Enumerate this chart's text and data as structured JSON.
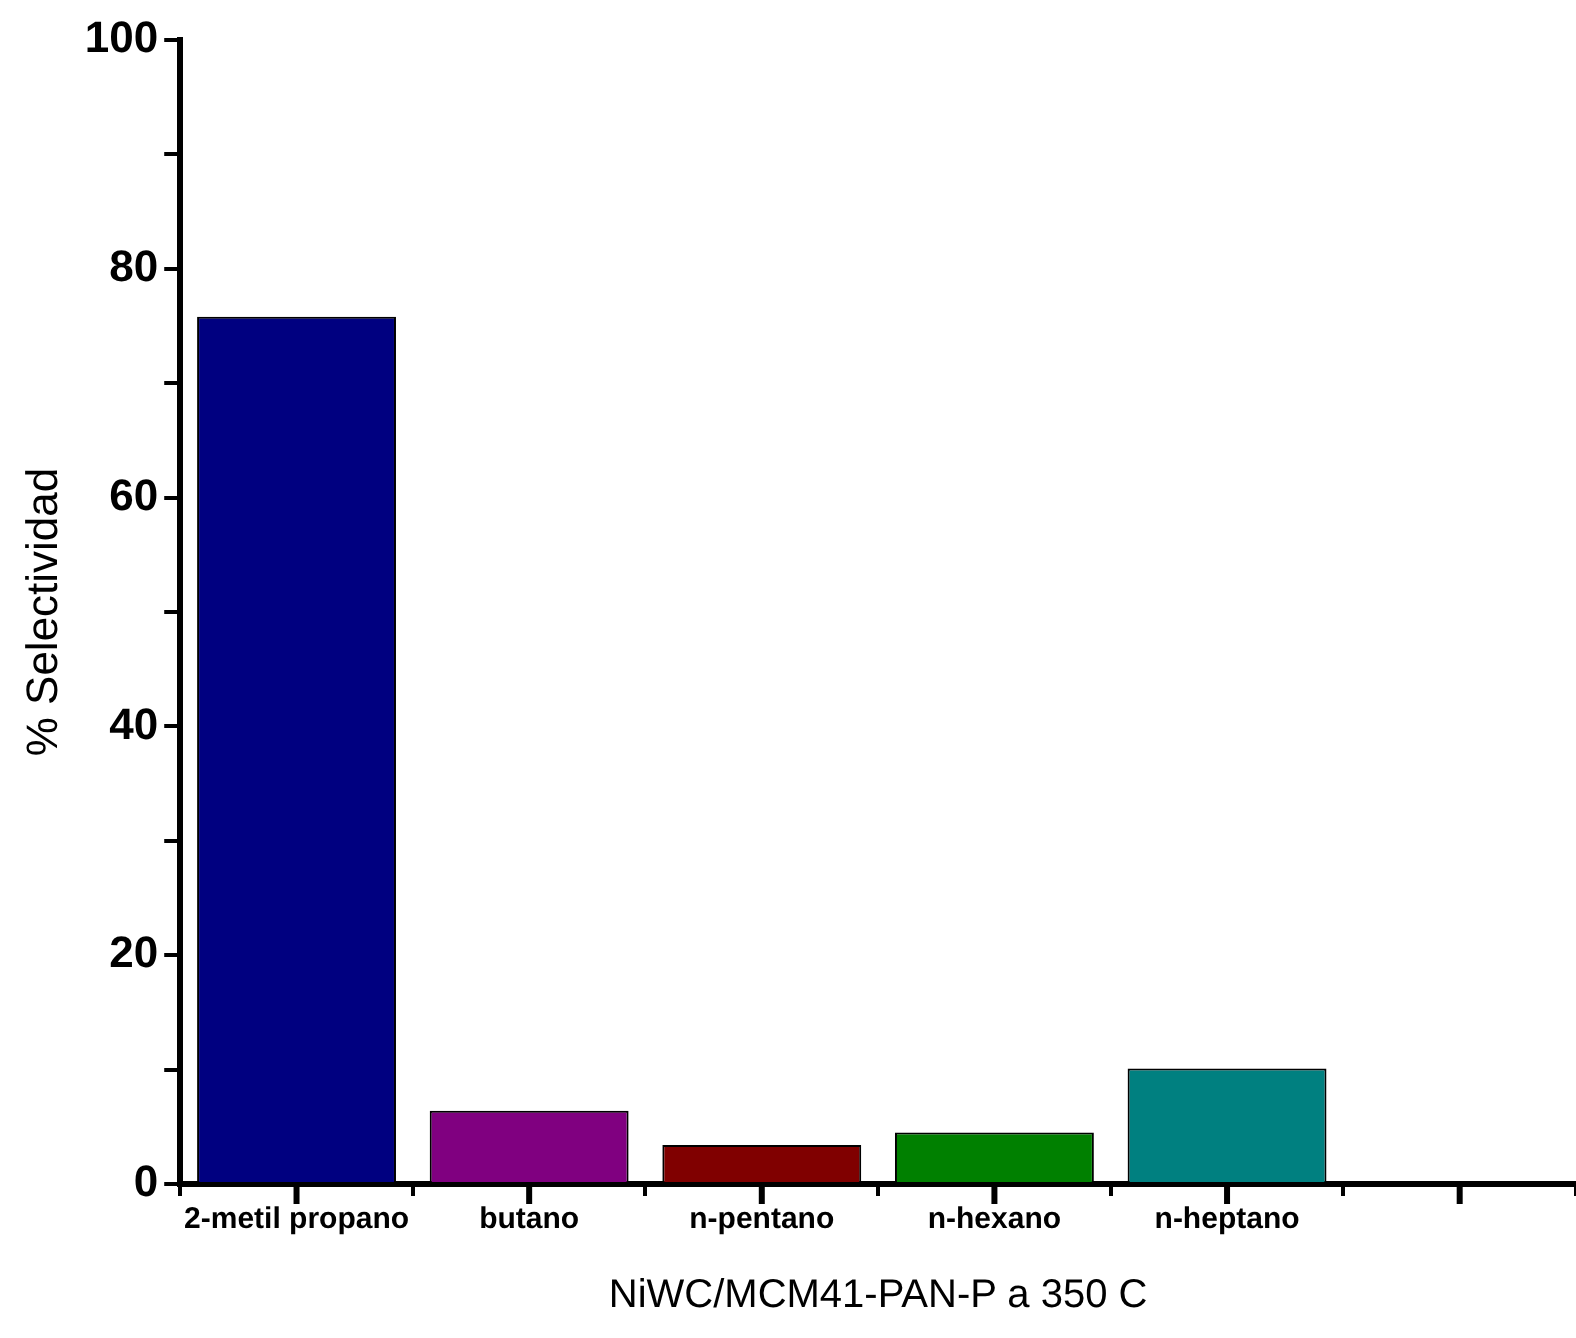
{
  "chart_data": {
    "type": "bar",
    "xlabel": "NiWC/MCM41-PAN-P a 350 C",
    "ylabel": "% Selectividad",
    "categories": [
      "2-metil propano",
      "butano",
      "n-pentano",
      "n-hexano",
      "n-heptano",
      null
    ],
    "values": [
      75.8,
      6.4,
      3.4,
      4.5,
      10.1,
      null
    ],
    "colors": [
      "#000080",
      "#800080",
      "#800000",
      "#008000",
      "#008080",
      null
    ],
    "ylim": [
      0,
      100
    ],
    "yticks": [
      0,
      {
        "value": 10,
        "label": null
      },
      20,
      {
        "value": 30,
        "label": null
      },
      40,
      {
        "value": 50,
        "label": null
      },
      60,
      {
        "value": 70,
        "label": null
      },
      80,
      {
        "value": 90,
        "label": null
      },
      100
    ],
    "grid": false,
    "legend": false
  }
}
